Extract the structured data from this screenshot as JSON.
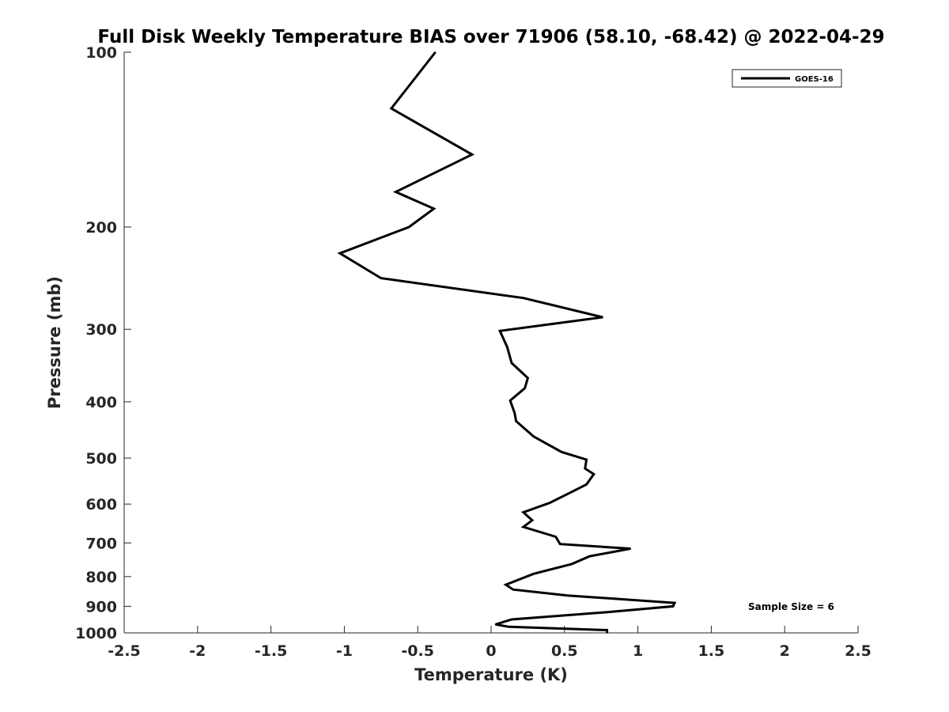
{
  "chart_data": {
    "type": "line",
    "title": "Full Disk Weekly Temperature BIAS over 71906 (58.10, -68.42) @ 2022-04-29",
    "xlabel": "Temperature (K)",
    "ylabel": "Pressure (mb)",
    "xlim": [
      -2.5,
      2.5
    ],
    "ylim": [
      1000,
      100
    ],
    "yscale": "log",
    "y_reversed": true,
    "x_ticks": [
      -2.5,
      -2,
      -1.5,
      -1,
      -0.5,
      0,
      0.5,
      1,
      1.5,
      2,
      2.5
    ],
    "x_tick_labels": [
      "-2.5",
      "-2",
      "-1.5",
      "-1",
      "-0.5",
      "0",
      "0.5",
      "1",
      "1.5",
      "2",
      "2.5"
    ],
    "y_ticks": [
      100,
      200,
      300,
      400,
      500,
      600,
      700,
      800,
      900,
      1000
    ],
    "y_tick_labels": [
      "100",
      "200",
      "300",
      "400",
      "500",
      "600",
      "700",
      "800",
      "900",
      "1000"
    ],
    "grid": false,
    "legend_position": "top-right",
    "annotation": "Sample Size = 6",
    "series": [
      {
        "name": "GOES-16",
        "color": "#000000",
        "points": [
          {
            "x": -0.38,
            "y": 100
          },
          {
            "x": -0.68,
            "y": 125
          },
          {
            "x": -0.13,
            "y": 150
          },
          {
            "x": -0.65,
            "y": 174
          },
          {
            "x": -0.39,
            "y": 186
          },
          {
            "x": -0.56,
            "y": 200
          },
          {
            "x": -1.03,
            "y": 222
          },
          {
            "x": -0.75,
            "y": 245
          },
          {
            "x": 0.22,
            "y": 265
          },
          {
            "x": 0.76,
            "y": 286
          },
          {
            "x": 0.06,
            "y": 302
          },
          {
            "x": 0.11,
            "y": 322
          },
          {
            "x": 0.14,
            "y": 343
          },
          {
            "x": 0.25,
            "y": 364
          },
          {
            "x": 0.23,
            "y": 379
          },
          {
            "x": 0.13,
            "y": 398
          },
          {
            "x": 0.16,
            "y": 418
          },
          {
            "x": 0.17,
            "y": 432
          },
          {
            "x": 0.29,
            "y": 459
          },
          {
            "x": 0.48,
            "y": 488
          },
          {
            "x": 0.65,
            "y": 503
          },
          {
            "x": 0.64,
            "y": 521
          },
          {
            "x": 0.7,
            "y": 533
          },
          {
            "x": 0.65,
            "y": 555
          },
          {
            "x": 0.53,
            "y": 575
          },
          {
            "x": 0.4,
            "y": 597
          },
          {
            "x": 0.22,
            "y": 620
          },
          {
            "x": 0.28,
            "y": 640
          },
          {
            "x": 0.22,
            "y": 657
          },
          {
            "x": 0.44,
            "y": 683
          },
          {
            "x": 0.47,
            "y": 703
          },
          {
            "x": 0.95,
            "y": 716
          },
          {
            "x": 0.67,
            "y": 738
          },
          {
            "x": 0.55,
            "y": 761
          },
          {
            "x": 0.29,
            "y": 791
          },
          {
            "x": 0.1,
            "y": 826
          },
          {
            "x": 0.15,
            "y": 842
          },
          {
            "x": 0.52,
            "y": 862
          },
          {
            "x": 1.25,
            "y": 888
          },
          {
            "x": 1.24,
            "y": 900
          },
          {
            "x": 0.77,
            "y": 922
          },
          {
            "x": 0.14,
            "y": 948
          },
          {
            "x": 0.03,
            "y": 967
          },
          {
            "x": 0.12,
            "y": 976
          },
          {
            "x": 0.79,
            "y": 989
          },
          {
            "x": 0.79,
            "y": 1000
          }
        ]
      }
    ]
  }
}
